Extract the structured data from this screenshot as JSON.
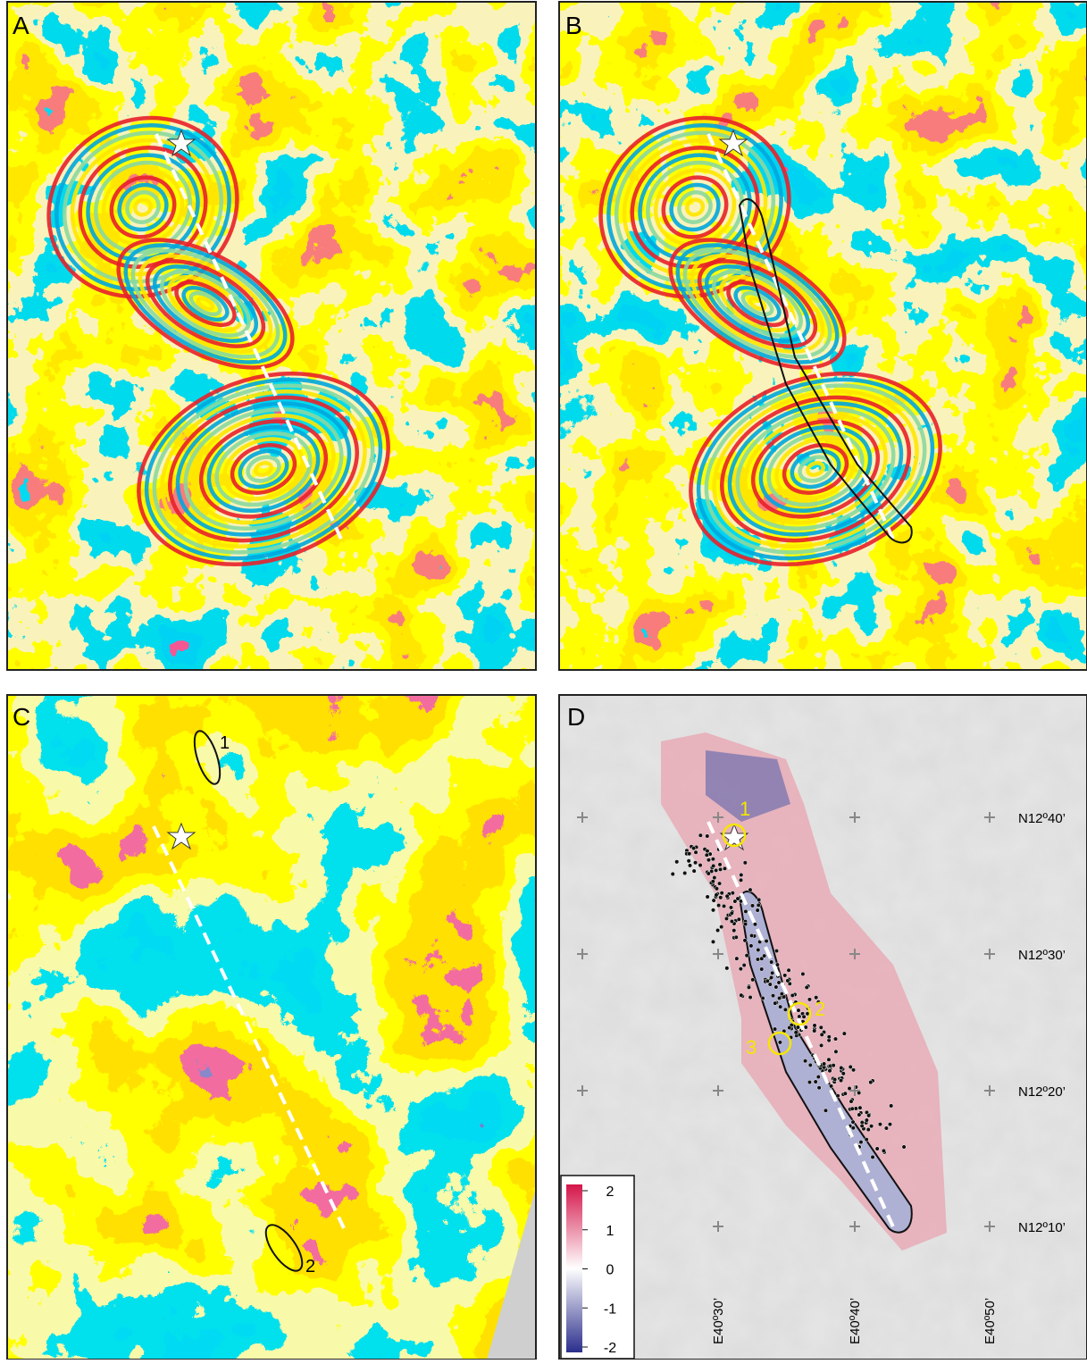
{
  "panels": [
    {
      "label": "A"
    },
    {
      "label": "B"
    },
    {
      "label": "C",
      "annotations": [
        "1",
        "2"
      ]
    },
    {
      "label": "D",
      "annotations": [
        "1",
        "2",
        "3"
      ],
      "latitude_labels": [
        "N12º40’",
        "N12º30’",
        "N12º20’",
        "N12º10’"
      ],
      "longitude_labels": [
        "E40º30’",
        "E40º40’",
        "E40º50’"
      ],
      "colorbar": {
        "range": [
          -2,
          2
        ],
        "ticks": [
          2,
          1,
          0,
          -1,
          -2
        ]
      }
    }
  ]
}
